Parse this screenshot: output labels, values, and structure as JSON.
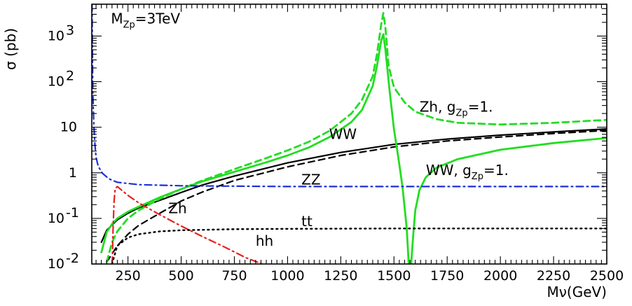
{
  "chart_data": {
    "type": "line",
    "title": "",
    "xlabel": "Mν(GeV)",
    "ylabel": "σ (pb)",
    "xlim": [
      80,
      2500
    ],
    "ylim": [
      0.01,
      5000
    ],
    "yscale": "log",
    "grid": false,
    "legend": "none",
    "x_ticks": [
      250,
      500,
      750,
      1000,
      1250,
      1500,
      1750,
      2000,
      2250,
      2500
    ],
    "x_tick_labels": [
      "250",
      "500",
      "750",
      "1000",
      "1250",
      "1500",
      "1750",
      "2000",
      "2250",
      "2500"
    ],
    "y_ticks": [
      {
        "value": 0.01,
        "base": "10",
        "exp": "-2"
      },
      {
        "value": 0.1,
        "base": "10",
        "exp": "-1"
      },
      {
        "value": 1,
        "base": "1",
        "exp": ""
      },
      {
        "value": 10,
        "base": "10",
        "exp": ""
      },
      {
        "value": 100,
        "base": "10",
        "exp": "2"
      },
      {
        "value": 1000,
        "base": "10",
        "exp": "3"
      }
    ],
    "annotations": [
      {
        "id": "mass",
        "parts": [
          {
            "t": "M"
          },
          {
            "t": "Zp",
            "sub": true
          },
          {
            "t": "=3TeV"
          }
        ],
        "x": 170,
        "y": 1900
      },
      {
        "id": "zh-gzp",
        "parts": [
          {
            "t": "Zh, g"
          },
          {
            "t": "Zp",
            "sub": true
          },
          {
            "t": "=1."
          }
        ],
        "x": 1620,
        "y": 22
      },
      {
        "id": "ww",
        "parts": [
          {
            "t": "WW"
          }
        ],
        "x": 1195,
        "y": 5.5
      },
      {
        "id": "ww-gzp",
        "parts": [
          {
            "t": "WW, g"
          },
          {
            "t": "Zp",
            "sub": true
          },
          {
            "t": "=1."
          }
        ],
        "x": 1650,
        "y": 0.9
      },
      {
        "id": "zz",
        "parts": [
          {
            "t": "ZZ"
          }
        ],
        "x": 1065,
        "y": 0.55
      },
      {
        "id": "zh",
        "parts": [
          {
            "t": "Zh"
          }
        ],
        "x": 440,
        "y": 0.13
      },
      {
        "id": "tt",
        "parts": [
          {
            "t": "tt"
          }
        ],
        "x": 1065,
        "y": 0.068
      },
      {
        "id": "hh",
        "parts": [
          {
            "t": "hh"
          }
        ],
        "x": 850,
        "y": 0.025
      }
    ],
    "series": [
      {
        "label": "WW",
        "color": "#000000",
        "dash": "solid",
        "width": 2.2,
        "x": [
          125,
          150,
          200,
          250,
          300,
          400,
          500,
          600,
          750,
          1000,
          1250,
          1500,
          1750,
          2000,
          2250,
          2500
        ],
        "y": [
          0.03,
          0.055,
          0.093,
          0.13,
          0.17,
          0.25,
          0.37,
          0.54,
          0.85,
          1.65,
          2.8,
          4.2,
          5.5,
          6.7,
          7.9,
          9.2
        ]
      },
      {
        "label": "ZZ",
        "color": "#000000",
        "dash": "dash",
        "width": 2.2,
        "x": [
          150,
          200,
          250,
          300,
          400,
          500,
          600,
          750,
          1000,
          1250,
          1500,
          1750,
          2000,
          2250,
          2500
        ],
        "y": [
          0.011,
          0.025,
          0.045,
          0.07,
          0.13,
          0.24,
          0.38,
          0.68,
          1.35,
          2.4,
          3.7,
          5.0,
          6.1,
          7.3,
          8.5
        ]
      },
      {
        "label": "Zh, gZp=1.",
        "color": "#22dd22",
        "dash": "dash",
        "width": 2.8,
        "x": [
          150,
          175,
          200,
          250,
          300,
          400,
          500,
          600,
          750,
          900,
          1000,
          1100,
          1200,
          1300,
          1350,
          1400,
          1420,
          1440,
          1450,
          1460,
          1475,
          1500,
          1550,
          1600,
          1700,
          1800,
          2000,
          2250,
          2500
        ],
        "y": [
          0.011,
          0.03,
          0.052,
          0.1,
          0.15,
          0.27,
          0.44,
          0.68,
          1.2,
          2.1,
          3.1,
          4.8,
          8.5,
          20,
          40,
          130,
          400,
          1800,
          3200,
          1500,
          220,
          75,
          35,
          22,
          15,
          12.5,
          11.5,
          12.5,
          14.5
        ]
      },
      {
        "label": "WW, gZp=1.",
        "color": "#22dd22",
        "dash": "solid",
        "width": 2.8,
        "x": [
          125,
          150,
          175,
          200,
          250,
          300,
          400,
          500,
          600,
          750,
          900,
          1000,
          1100,
          1200,
          1300,
          1350,
          1400,
          1420,
          1440,
          1450,
          1460,
          1480,
          1500,
          1520,
          1540,
          1560,
          1570,
          1580,
          1590,
          1600,
          1620,
          1650,
          1700,
          1800,
          2000,
          2250,
          2500
        ],
        "y": [
          0.018,
          0.05,
          0.075,
          0.1,
          0.14,
          0.18,
          0.29,
          0.44,
          0.65,
          1.05,
          1.7,
          2.4,
          3.6,
          6.2,
          13,
          24,
          80,
          220,
          800,
          1100,
          500,
          60,
          9,
          2.2,
          0.5,
          0.06,
          0.009,
          0.009,
          0.04,
          0.15,
          0.42,
          0.8,
          1.3,
          2.0,
          3.2,
          4.5,
          5.8
        ]
      },
      {
        "label": "ZZ (blue)",
        "color": "#1d2fd6",
        "dash": "dashdot",
        "width": 2.2,
        "x": [
          81,
          85,
          90,
          95,
          100,
          110,
          130,
          160,
          200,
          300,
          500,
          1000,
          1500,
          2000,
          2500
        ],
        "y": [
          5000,
          60,
          10,
          4,
          2.2,
          1.4,
          0.98,
          0.74,
          0.62,
          0.55,
          0.52,
          0.5,
          0.5,
          0.5,
          0.5
        ]
      },
      {
        "label": "hh",
        "color": "#e82020",
        "dash": "dashdot",
        "width": 2.2,
        "x": [
          176,
          180,
          185,
          190,
          200,
          225,
          250,
          300,
          400,
          500,
          600,
          700,
          800,
          880
        ],
        "y": [
          0.01,
          0.06,
          0.25,
          0.45,
          0.5,
          0.4,
          0.32,
          0.22,
          0.12,
          0.068,
          0.04,
          0.024,
          0.014,
          0.01
        ]
      },
      {
        "label": "tt",
        "color": "#000000",
        "dash": "dot",
        "width": 2.4,
        "x": [
          175,
          200,
          250,
          300,
          400,
          500,
          750,
          1000,
          1500,
          2000,
          2500
        ],
        "y": [
          0.01,
          0.025,
          0.038,
          0.045,
          0.052,
          0.055,
          0.058,
          0.059,
          0.06,
          0.06,
          0.06
        ]
      }
    ]
  }
}
